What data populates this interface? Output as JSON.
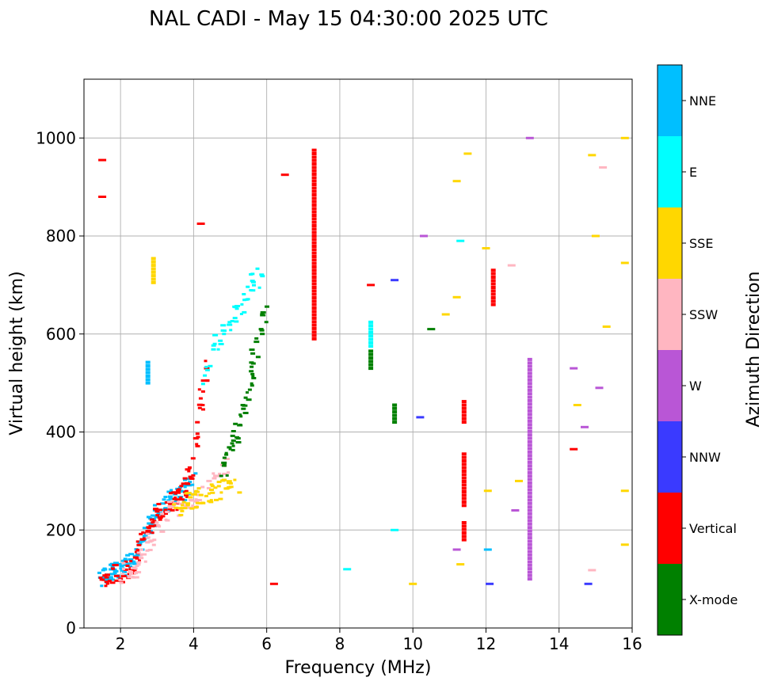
{
  "chart_data": {
    "type": "scatter",
    "title": "NAL CADI - May 15 04:30:00 2025 UTC",
    "xlabel": "Frequency (MHz)",
    "ylabel": "Virtual height (km)",
    "xlim": [
      1,
      16
    ],
    "ylim": [
      0,
      1120
    ],
    "xticks": [
      2,
      4,
      6,
      8,
      10,
      12,
      14,
      16
    ],
    "yticks": [
      0,
      200,
      400,
      600,
      800,
      1000
    ],
    "grid": true,
    "colorbar": {
      "label": "Azimuth Direction",
      "categories": [
        {
          "name": "X-mode",
          "color": "#008000"
        },
        {
          "name": "Vertical",
          "color": "#ff0000"
        },
        {
          "name": "NNW",
          "color": "#3a3aff"
        },
        {
          "name": "W",
          "color": "#b956d6"
        },
        {
          "name": "SSW",
          "color": "#ffb6c1"
        },
        {
          "name": "SSE",
          "color": "#ffd700"
        },
        {
          "name": "E",
          "color": "#00ffff"
        },
        {
          "name": "NNE",
          "color": "#00bfff"
        }
      ]
    },
    "echo_traces": [
      {
        "category": "NNE",
        "f": [
          1.5,
          1.6,
          1.7,
          1.8,
          2.0,
          2.2,
          2.4,
          2.6,
          2.8,
          3.0,
          3.2,
          3.4,
          3.6,
          3.8,
          4.0
        ],
        "h": [
          100,
          110,
          112,
          115,
          118,
          122,
          140,
          180,
          215,
          240,
          255,
          265,
          275,
          285,
          300
        ]
      },
      {
        "category": "Vertical",
        "f": [
          1.5,
          1.7,
          2.0,
          2.3,
          2.5,
          2.7,
          2.9,
          3.1,
          3.3,
          3.5,
          3.7,
          3.9,
          4.0,
          4.2,
          4.4
        ],
        "h": [
          95,
          105,
          112,
          120,
          150,
          195,
          225,
          240,
          250,
          262,
          275,
          300,
          360,
          450,
          560
        ]
      },
      {
        "category": "SSW",
        "f": [
          2.0,
          2.3,
          2.5,
          2.7,
          3.0,
          3.4,
          3.8,
          4.2,
          4.6,
          5.0
        ],
        "h": [
          110,
          118,
          130,
          160,
          210,
          240,
          255,
          270,
          300,
          330
        ]
      },
      {
        "category": "SSE",
        "f": [
          3.5,
          3.8,
          4.0,
          4.3,
          4.6,
          4.9,
          5.2
        ],
        "h": [
          245,
          255,
          265,
          272,
          280,
          288,
          295
        ]
      },
      {
        "category": "X-mode",
        "f": [
          4.8,
          5.0,
          5.2,
          5.4,
          5.6,
          5.8,
          6.0
        ],
        "h": [
          320,
          360,
          400,
          450,
          520,
          600,
          660
        ]
      },
      {
        "category": "E",
        "f": [
          4.3,
          4.6,
          5.0,
          5.3,
          5.6,
          5.9
        ],
        "h": [
          500,
          580,
          620,
          660,
          700,
          730
        ]
      }
    ],
    "vertical_streaks": [
      {
        "category": "Vertical",
        "f": 7.3,
        "h_from": 590,
        "h_to": 980
      },
      {
        "category": "X-mode",
        "f": 8.85,
        "h_from": 530,
        "h_to": 565
      },
      {
        "category": "E",
        "f": 8.85,
        "h_from": 575,
        "h_to": 630
      },
      {
        "category": "X-mode",
        "f": 9.5,
        "h_from": 420,
        "h_to": 460
      },
      {
        "category": "Vertical",
        "f": 11.4,
        "h_from": 250,
        "h_to": 360
      },
      {
        "category": "Vertical",
        "f": 11.4,
        "h_from": 420,
        "h_to": 465
      },
      {
        "category": "Vertical",
        "f": 11.4,
        "h_from": 180,
        "h_to": 215
      },
      {
        "category": "W",
        "f": 13.2,
        "h_from": 100,
        "h_to": 550
      },
      {
        "category": "Vertical",
        "f": 12.2,
        "h_from": 660,
        "h_to": 730
      },
      {
        "category": "SSE",
        "f": 2.9,
        "h_from": 705,
        "h_to": 760
      },
      {
        "category": "NNE",
        "f": 2.75,
        "h_from": 500,
        "h_to": 545
      }
    ],
    "isolated_echoes": [
      {
        "category": "Vertical",
        "f": 1.5,
        "h": 880
      },
      {
        "category": "Vertical",
        "f": 1.5,
        "h": 955
      },
      {
        "category": "Vertical",
        "f": 6.5,
        "h": 925
      },
      {
        "category": "W",
        "f": 13.2,
        "h": 1000
      },
      {
        "category": "SSE",
        "f": 15.8,
        "h": 1000
      },
      {
        "category": "SSE",
        "f": 15.8,
        "h": 745
      },
      {
        "category": "SSE",
        "f": 15.8,
        "h": 170
      },
      {
        "category": "SSE",
        "f": 15.0,
        "h": 800
      },
      {
        "category": "SSW",
        "f": 15.2,
        "h": 940
      },
      {
        "category": "SSE",
        "f": 14.9,
        "h": 965
      },
      {
        "category": "Vertical",
        "f": 4.2,
        "h": 825
      },
      {
        "category": "Vertical",
        "f": 8.85,
        "h": 700
      },
      {
        "category": "SSE",
        "f": 12.0,
        "h": 775
      },
      {
        "category": "SSW",
        "f": 12.7,
        "h": 740
      },
      {
        "category": "NNW",
        "f": 14.8,
        "h": 90
      },
      {
        "category": "Vertical",
        "f": 6.2,
        "h": 90
      },
      {
        "category": "SSE",
        "f": 12.9,
        "h": 300
      },
      {
        "category": "W",
        "f": 15.1,
        "h": 490
      },
      {
        "category": "SSE",
        "f": 15.3,
        "h": 615
      },
      {
        "category": "W",
        "f": 14.4,
        "h": 530
      },
      {
        "category": "SSE",
        "f": 14.5,
        "h": 455
      },
      {
        "category": "W",
        "f": 14.7,
        "h": 410
      },
      {
        "category": "Vertical",
        "f": 14.4,
        "h": 365
      },
      {
        "category": "SSE",
        "f": 15.8,
        "h": 280
      },
      {
        "category": "SSW",
        "f": 14.9,
        "h": 118
      },
      {
        "category": "E",
        "f": 9.5,
        "h": 200
      },
      {
        "category": "NNW",
        "f": 10.2,
        "h": 430
      },
      {
        "category": "W",
        "f": 12.8,
        "h": 240
      },
      {
        "category": "SSE",
        "f": 11.5,
        "h": 968
      },
      {
        "category": "SSE",
        "f": 11.2,
        "h": 912
      },
      {
        "category": "E",
        "f": 11.3,
        "h": 790
      },
      {
        "category": "SSE",
        "f": 11.2,
        "h": 675
      },
      {
        "category": "SSE",
        "f": 10.9,
        "h": 640
      },
      {
        "category": "NNE",
        "f": 12.05,
        "h": 160
      },
      {
        "category": "SSE",
        "f": 12.05,
        "h": 280
      },
      {
        "category": "E",
        "f": 8.2,
        "h": 120
      },
      {
        "category": "W",
        "f": 11.2,
        "h": 160
      },
      {
        "category": "NNW",
        "f": 12.1,
        "h": 90
      },
      {
        "category": "SSE",
        "f": 11.3,
        "h": 130
      },
      {
        "category": "SSE",
        "f": 10.0,
        "h": 90
      },
      {
        "category": "NNW",
        "f": 9.5,
        "h": 710
      },
      {
        "category": "W",
        "f": 10.3,
        "h": 800
      },
      {
        "category": "X-mode",
        "f": 10.5,
        "h": 610
      }
    ]
  }
}
